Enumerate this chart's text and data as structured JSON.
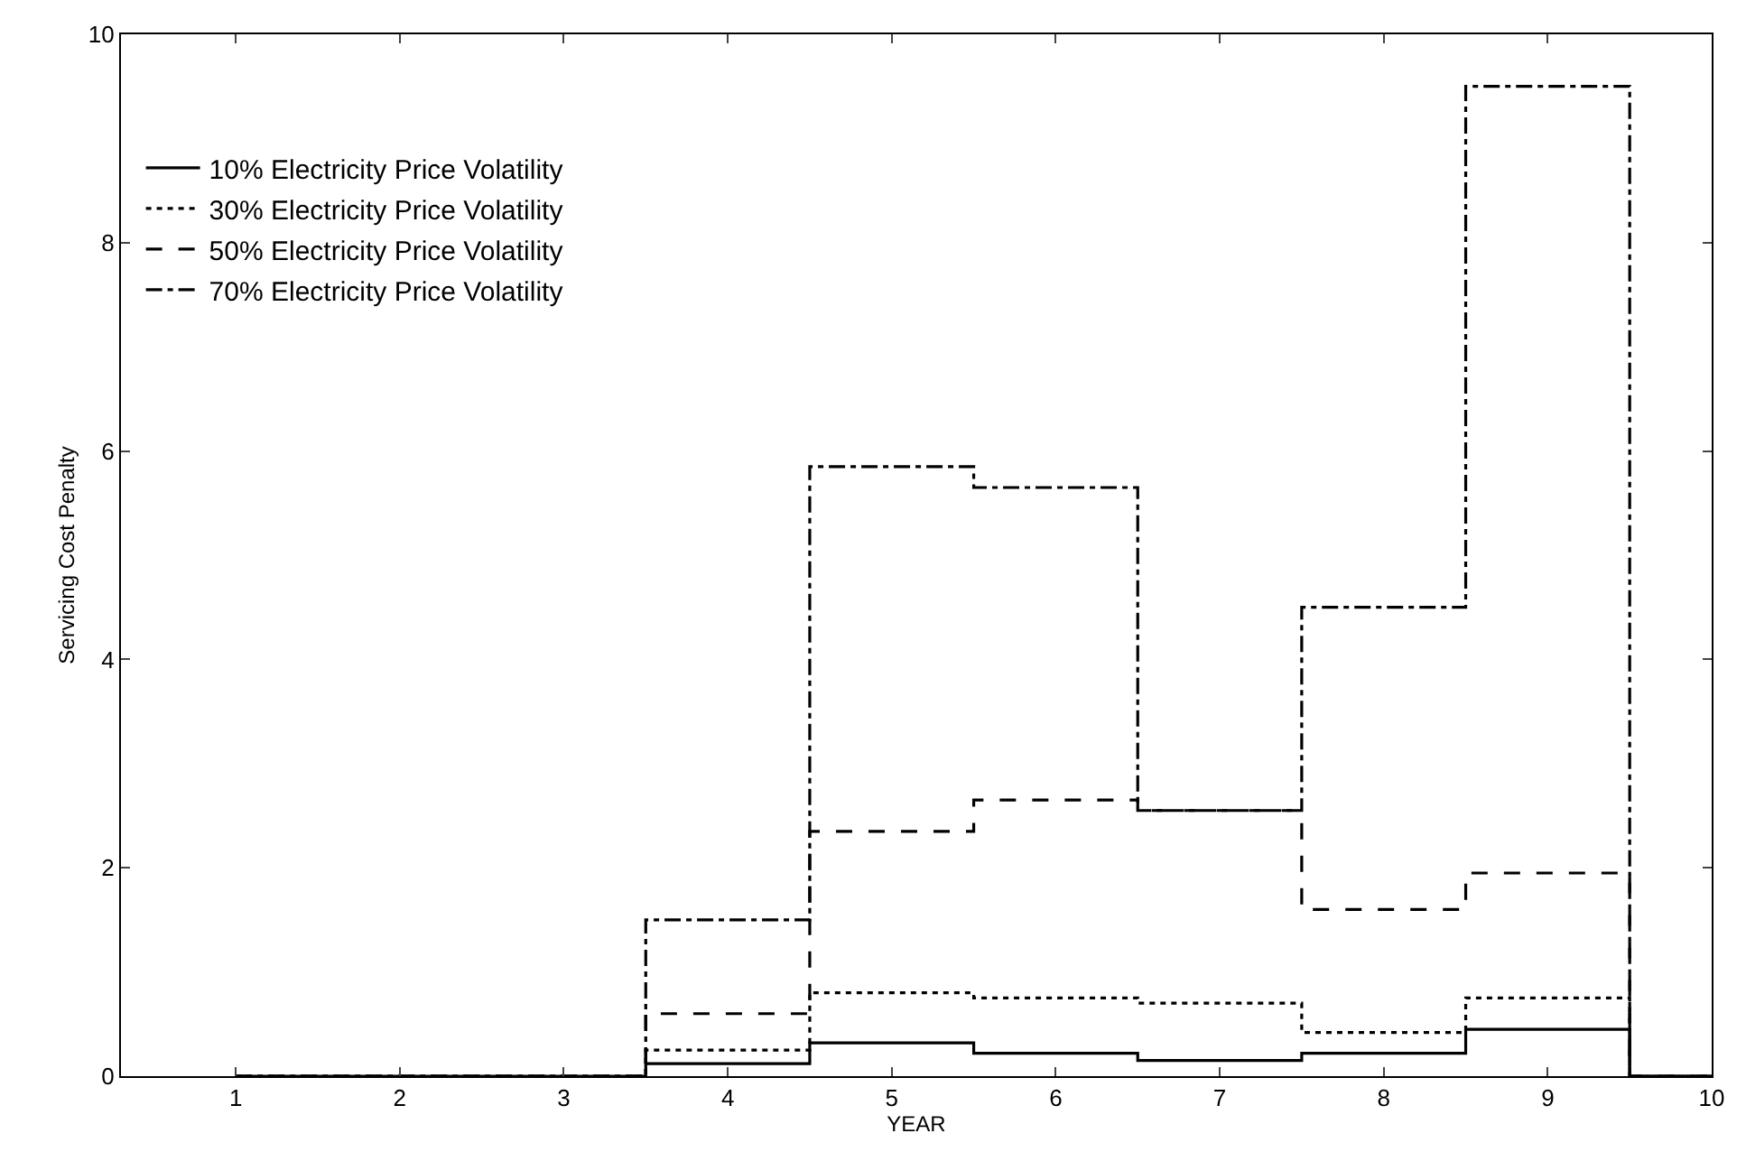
{
  "chart_data": {
    "type": "step",
    "xlabel": "YEAR",
    "ylabel": "Servicing Cost Penalty",
    "x": [
      1,
      2,
      3,
      4,
      5,
      6,
      7,
      8,
      9,
      10
    ],
    "series": [
      {
        "name": "10% Electricity Price Volatility",
        "color": "#000000",
        "line_style": "solid",
        "values": [
          0,
          0,
          0,
          0.12,
          0.32,
          0.22,
          0.15,
          0.22,
          0.45,
          0
        ]
      },
      {
        "name": "30% Electricity Price Volatility",
        "color": "#000000",
        "line_style": "dotted",
        "values": [
          0,
          0,
          0,
          0.25,
          0.8,
          0.75,
          0.7,
          0.42,
          0.75,
          0
        ]
      },
      {
        "name": "50% Electricity Price Volatility",
        "color": "#000000",
        "line_style": "dashed",
        "values": [
          0,
          0,
          0,
          0.6,
          2.35,
          2.65,
          2.55,
          1.6,
          1.95,
          0
        ]
      },
      {
        "name": "70% Electricity Price Volatility",
        "color": "#000000",
        "line_style": "dashdot",
        "values": [
          0,
          0,
          0,
          1.5,
          5.85,
          5.65,
          2.55,
          4.5,
          9.5,
          0
        ]
      }
    ],
    "xlim": [
      0.3,
      10
    ],
    "xticks": [
      1,
      2,
      3,
      4,
      5,
      6,
      7,
      8,
      9,
      10
    ],
    "ylim": [
      0,
      10
    ],
    "yticks": [
      0,
      2,
      4,
      6,
      8,
      10
    ],
    "legend": "top left",
    "marker": "none"
  }
}
